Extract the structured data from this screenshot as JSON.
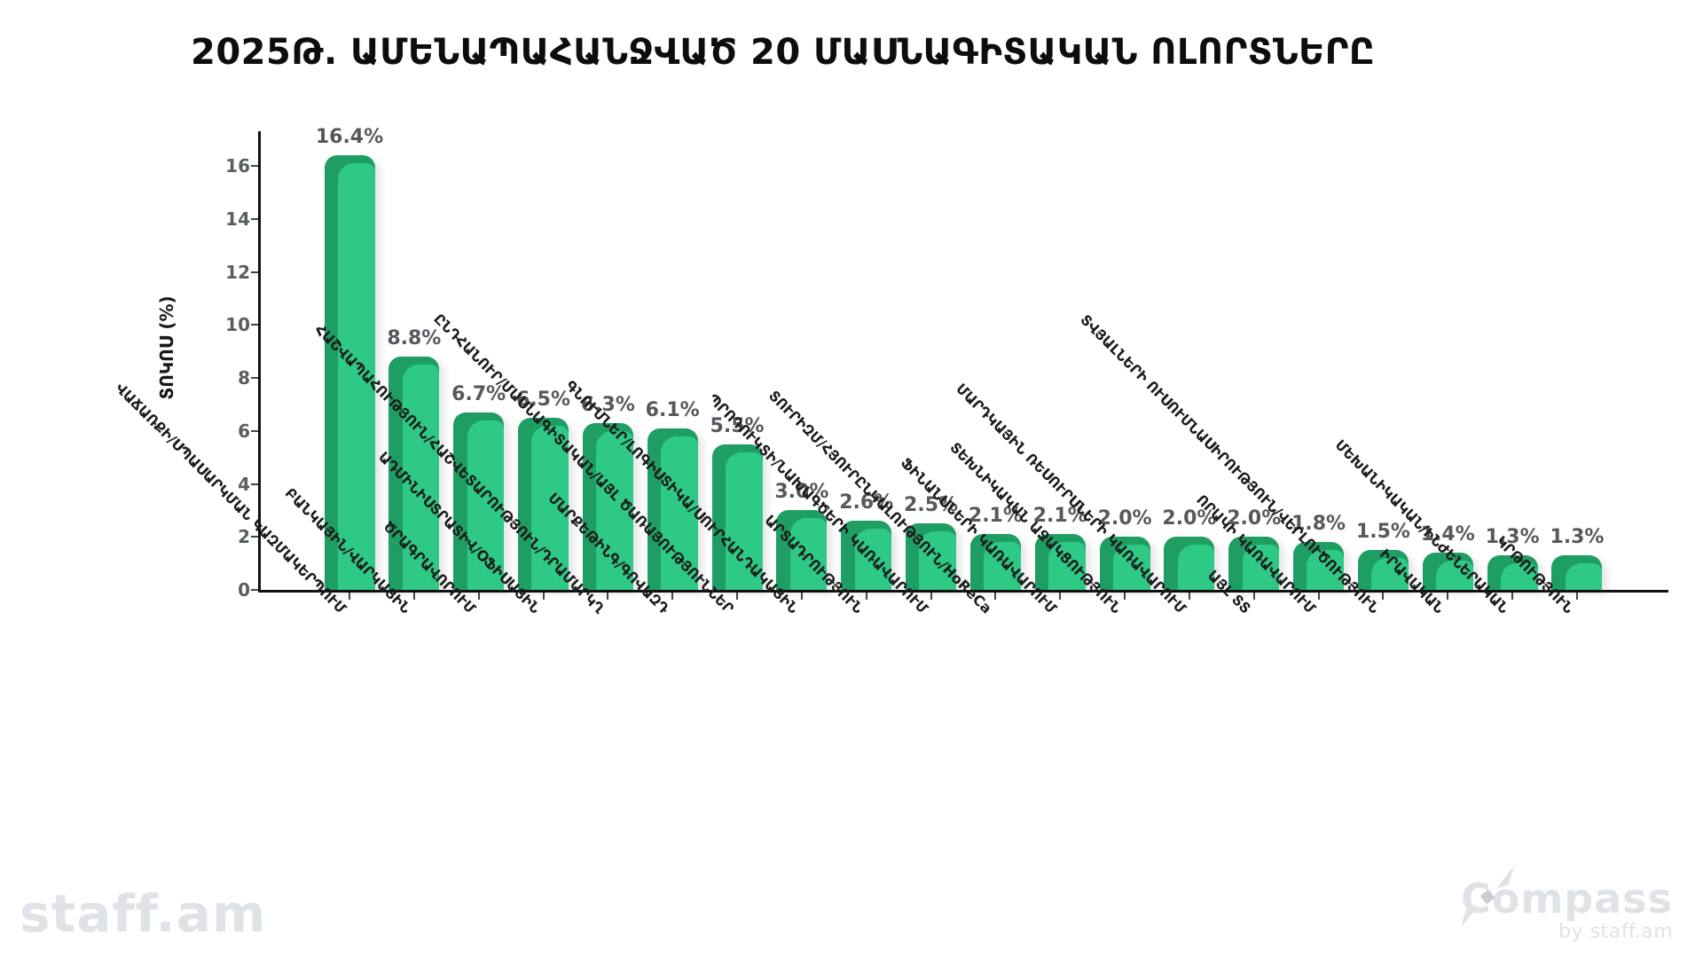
{
  "title": "2025Թ. ԱՄԵՆԱՊԱՀԱՆՋՎԱԾ 20 ՄԱՍՆԱԳԻՏԱԿԱՆ ՈԼՈՐՏՆԵՐԸ",
  "chart_data": {
    "type": "bar",
    "title": "2025Թ. ԱՄԵՆԱՊԱՀԱՆՋՎԱԾ 20 ՄԱՍՆԱԳԻՏԱԿԱՆ ՈԼՈՐՏՆԵՐԸ",
    "ylabel": "ՏՈԿՈՍ (%)",
    "xlabel": "",
    "ylim": [
      0,
      17
    ],
    "yticks": [
      0,
      2,
      4,
      6,
      8,
      10,
      12,
      14,
      16
    ],
    "grid": false,
    "legend": "none",
    "categories": [
      "ՎԱՃԱՌՔԻ/ՍՊԱՍԱՐԿՄԱՆ ԿԱԶՄԱԿԵՐՊՈՒՄ",
      "ԲԱՆԿԱՅԻՆ/ՎԱՐԿԱՅԻՆ",
      "ԾՐԱԳՐԱՎՈՐՈՒՄ",
      "ԱԴՄԻՆԻՍՏՐԱՏԻՎ/ՕՖԻՍԱՅԻՆ",
      "ՀԱՇՎԱՊԱՀՈՒԹՅՈՒՆ/ՀԱՇՎԵՏԱՐՈՒԹՅՈՒՆ/ԴՐԱՄԱՐԿՂ",
      "ՄԱՐՔԵԹԻՆԳ/ԳՈՎԱԶԴ",
      "ԸՆԴՀԱՆՈՒՐ/ՄԱՍՆԱԳԻՏԱԿԱՆ/ԱՅԼ ԾԱՌԱՅՈՒԹՅՈՒՆՆԵՐ",
      "ԳՆՈՒՄՆԵՐ/ԼՈԳԻՍՏԻԿԱ/ՍՈՒՐՀԱՆԴԱԿԱՅԻՆ",
      "ԱՐՏԱԴՐՈՒԹՅՈՒՆ",
      "ՊՐՈԴՈՒԿՏԻ/ՆԱԽԱԳԾԵՐԻ ԿԱՌԱՎԱՐՈՒՄ",
      "ՏՈՒՐԻԶՄ/ՀՅՈՒՐԸՆԿԱԼՈՒԹՅՈՒՆ/HoReCa",
      "ՖԻՆԱՆՍՆԵՐԻ ԿԱՌԱՎԱՐՈՒՄ",
      "ՏԵԽՆԻԿԱԿԱՆ ԱՋԱԿՑՈՒԹՅՈՒՆ",
      "ՄԱՐԴԿԱՅԻՆ ՌԵՍՈՒՐՍՆԵՐԻ ԿԱՌԱՎԱՐՈՒՄ",
      "ԱՅԼ ՏՏ",
      "ՈՐԱԿԻ ԿԱՌԱՎԱՐՈՒՄ",
      "ՏՎՅԱԼՆԵՐԻ ՈՒՍՈՒՄՆԱՍԻՐՈՒԹՅՈՒՆ/ՎԵՐԼՈՒԾՈՒԹՅՈՒՆ",
      "ԻՐԱՎԱԿԱՆ",
      "ՄԵԽԱՆԻԿԱԿԱՆ/ԻՆԺԵՆԵՐԱԿԱՆ",
      "ԿՐԹՈՒԹՅՈՒՆ"
    ],
    "values": [
      16.4,
      8.8,
      6.7,
      6.5,
      6.3,
      6.1,
      5.5,
      3.0,
      2.6,
      2.5,
      2.1,
      2.1,
      2.0,
      2.0,
      2.0,
      1.8,
      1.5,
      1.4,
      1.3,
      1.3
    ],
    "value_label_suffix": "%"
  },
  "colors": {
    "bar_light": "#2dc985",
    "bar_dark": "#1f9e63",
    "axis": "#111111",
    "tick_text": "#595e63",
    "value_text": "#55595e",
    "category_text": "#1c1c1c",
    "logo_gray": "#dfe2e6"
  },
  "footer": {
    "left_logo": "staff.am",
    "right_logo": "Compass",
    "right_logo_sub": "by staff.am"
  }
}
